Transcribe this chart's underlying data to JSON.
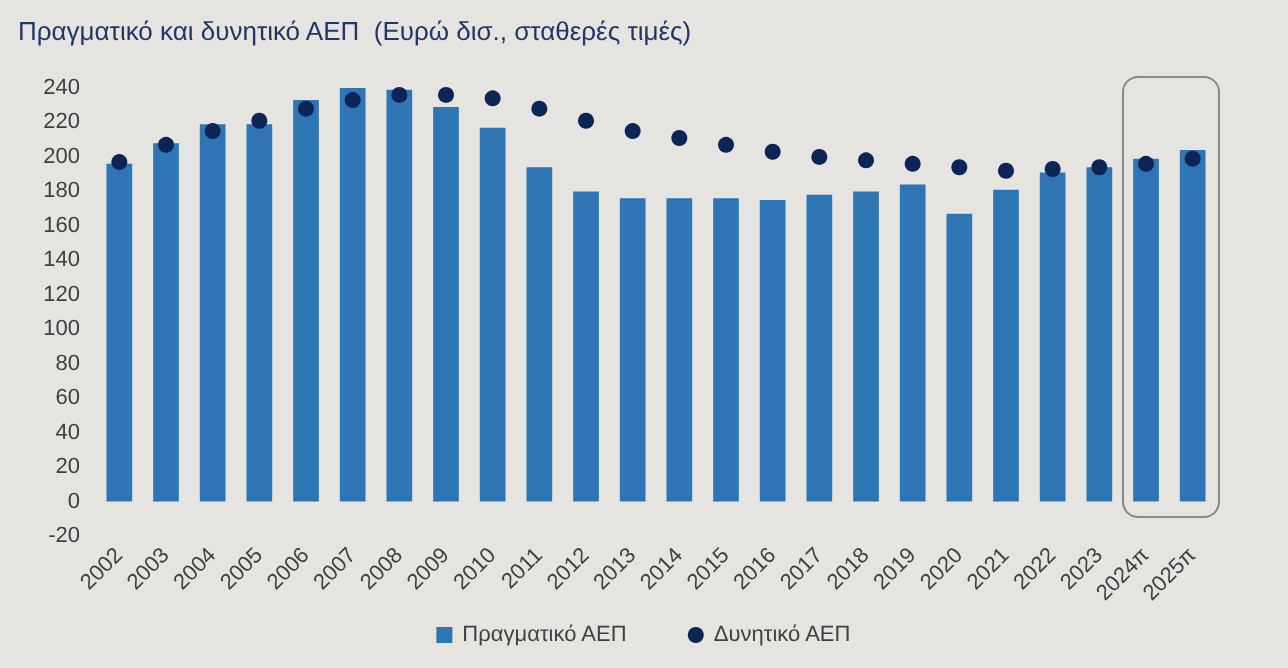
{
  "chart_data": {
    "type": "bar",
    "title": "Πραγματικό και δυνητικό ΑΕΠ  (Ευρώ δισ., σταθερές τιμές)",
    "categories": [
      "2002",
      "2003",
      "2004",
      "2005",
      "2006",
      "2007",
      "2008",
      "2009",
      "2010",
      "2011",
      "2012",
      "2013",
      "2014",
      "2015",
      "2016",
      "2017",
      "2018",
      "2019",
      "2020",
      "2021",
      "2022",
      "2023",
      "2024π",
      "2025π"
    ],
    "series": [
      {
        "name": "Πραγματικό ΑΕΠ",
        "color": "#2e75b6",
        "values": [
          196,
          208,
          219,
          219,
          233,
          240,
          239,
          229,
          217,
          194,
          180,
          176,
          176,
          176,
          175,
          178,
          180,
          184,
          167,
          181,
          191,
          194,
          199,
          204
        ]
      },
      {
        "name": "Δυνητικό ΑΕΠ",
        "type": "scatter",
        "color": "#0d2456",
        "values": [
          197,
          207,
          215,
          221,
          228,
          233,
          236,
          236,
          234,
          228,
          221,
          215,
          211,
          207,
          203,
          200,
          198,
          196,
          194,
          192,
          193,
          194,
          196,
          199
        ]
      }
    ],
    "ylim": [
      -20,
      240
    ],
    "yticks": [
      -20,
      0,
      20,
      40,
      60,
      80,
      100,
      120,
      140,
      160,
      180,
      200,
      220,
      240
    ],
    "grid": false,
    "legend": "bottom",
    "marker": "circle"
  }
}
